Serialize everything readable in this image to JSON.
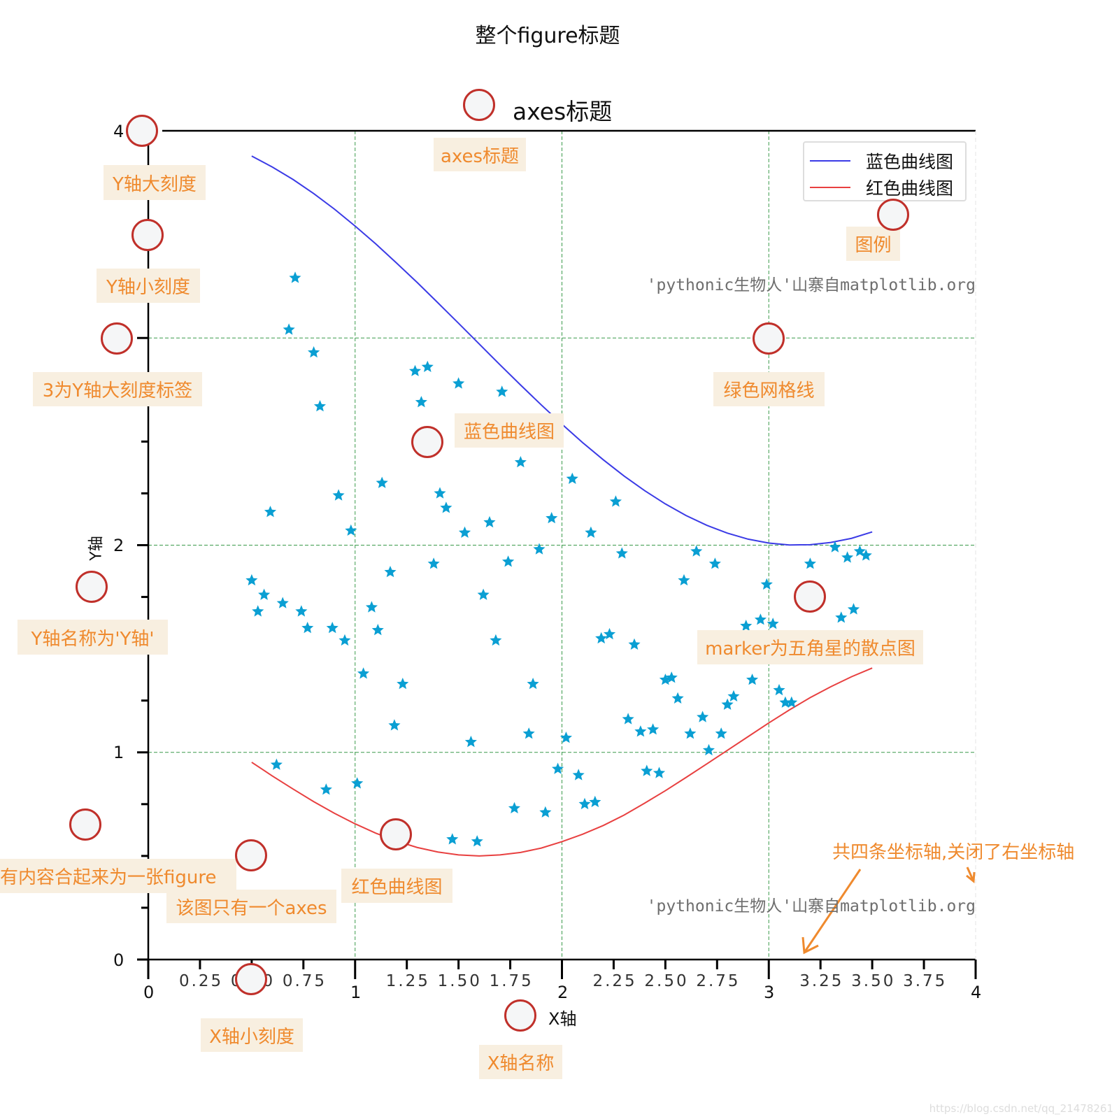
{
  "figure_title": "整个figure标题",
  "legend": [
    {
      "label": "蓝色曲线图",
      "color": "#3b3be6"
    },
    {
      "label": "红色曲线图",
      "color": "#e84040"
    }
  ],
  "watermark": "'pythonic生物人'山寨自matplotlib.org",
  "csdn_watermark": "https://blog.csdn.net/qq_21478261",
  "annotations": {
    "axes_title": "axes标题",
    "y_major_tick": "Y轴大刻度",
    "y_minor_tick": "Y轴小刻度",
    "y_major_label": "3为Y轴大刻度标签",
    "grid": "绿色网格线",
    "blue_curve": "蓝色曲线图",
    "legend": "图例",
    "y_label": "Y轴名称为'Y轴'",
    "scatter": "marker为五角星的散点图",
    "figure": "有内容合起来为一张figure",
    "axes": "该图只有一个axes",
    "red_curve": "红色曲线图",
    "x_minor_tick": "X轴小刻度",
    "x_label": "X轴名称",
    "spines": "共四条坐标轴,关闭了右坐标轴"
  },
  "chart_data": {
    "type": "line+scatter",
    "title": "axes标题",
    "xlabel": "X轴",
    "ylabel": "Y轴",
    "xlim": [
      0,
      4
    ],
    "ylim": [
      0,
      4
    ],
    "x_major_ticks": [
      "0",
      "1",
      "2",
      "3",
      "4"
    ],
    "x_minor_ticks": [
      "0.25",
      "0.50",
      "0.75",
      "1.25",
      "1.50",
      "1.75",
      "2.25",
      "2.50",
      "2.75",
      "3.25",
      "3.50",
      "3.75"
    ],
    "x_minor_values": [
      0.25,
      0.5,
      0.75,
      1.25,
      1.5,
      1.75,
      2.25,
      2.5,
      2.75,
      3.25,
      3.5,
      3.75
    ],
    "y_major_ticks": [
      "0",
      "1",
      "2",
      "3",
      "4"
    ],
    "grid": true,
    "legend_position": "upper-right",
    "x": [
      0.5,
      0.6,
      0.7,
      0.8,
      0.9,
      1.0,
      1.1,
      1.2,
      1.3,
      1.4,
      1.5,
      1.6,
      1.7,
      1.8,
      1.9,
      2.0,
      2.1,
      2.2,
      2.3,
      2.4,
      2.5,
      2.6,
      2.7,
      2.8,
      2.9,
      3.0,
      3.1,
      3.2,
      3.3,
      3.4,
      3.5
    ],
    "series": [
      {
        "name": "蓝色曲线图",
        "color": "#3b3be6",
        "values": [
          3.878,
          3.825,
          3.765,
          3.697,
          3.622,
          3.54,
          3.454,
          3.362,
          3.268,
          3.17,
          3.071,
          2.971,
          2.871,
          2.773,
          2.677,
          2.584,
          2.495,
          2.412,
          2.334,
          2.263,
          2.199,
          2.143,
          2.096,
          2.058,
          2.029,
          2.01,
          2.001,
          2.002,
          2.013,
          2.033,
          2.064
        ]
      },
      {
        "name": "红色曲线图",
        "color": "#e84040",
        "values": [
          0.952,
          0.886,
          0.823,
          0.762,
          0.706,
          0.655,
          0.61,
          0.572,
          0.541,
          0.519,
          0.505,
          0.5,
          0.505,
          0.517,
          0.538,
          0.569,
          0.605,
          0.647,
          0.697,
          0.755,
          0.815,
          0.879,
          0.944,
          1.01,
          1.076,
          1.142,
          1.205,
          1.264,
          1.317,
          1.365,
          1.407
        ]
      }
    ],
    "scatter": {
      "marker": "star",
      "color": "#0a9fd3",
      "x": [
        0.71,
        0.68,
        0.8,
        0.83,
        0.59,
        0.92,
        0.98,
        0.5,
        0.56,
        0.53,
        0.65,
        0.74,
        0.77,
        0.89,
        0.95,
        0.62,
        0.86,
        1.01,
        1.04,
        1.08,
        1.11,
        1.17,
        1.13,
        1.23,
        1.19,
        1.29,
        1.35,
        1.32,
        1.41,
        1.44,
        1.38,
        1.5,
        1.53,
        1.56,
        1.47,
        1.59,
        1.62,
        1.65,
        1.68,
        1.71,
        1.74,
        1.77,
        1.8,
        1.84,
        1.86,
        1.89,
        1.92,
        1.95,
        1.98,
        2.02,
        2.05,
        2.08,
        2.11,
        2.16,
        2.14,
        2.19,
        2.23,
        2.26,
        2.29,
        2.32,
        2.35,
        2.38,
        2.41,
        2.44,
        2.47,
        2.5,
        2.53,
        2.56,
        2.59,
        2.62,
        2.65,
        2.68,
        2.71,
        2.74,
        2.77,
        2.8,
        2.83,
        2.89,
        2.92,
        2.96,
        2.99,
        3.02,
        3.05,
        3.08,
        3.11,
        3.2,
        3.23,
        3.32,
        3.35,
        3.38,
        3.41,
        3.44,
        3.47
      ],
      "y": [
        3.29,
        3.04,
        2.93,
        2.67,
        2.16,
        2.24,
        2.07,
        1.83,
        1.76,
        1.68,
        1.72,
        1.68,
        1.6,
        1.6,
        1.54,
        0.94,
        0.82,
        0.85,
        1.38,
        1.7,
        1.59,
        1.87,
        2.3,
        1.33,
        1.13,
        2.84,
        2.86,
        2.69,
        2.25,
        2.18,
        1.91,
        2.78,
        2.06,
        1.05,
        0.58,
        0.57,
        1.76,
        2.11,
        1.54,
        2.74,
        1.92,
        0.73,
        2.4,
        1.09,
        1.33,
        1.98,
        0.71,
        2.13,
        0.92,
        1.07,
        2.32,
        0.89,
        0.75,
        0.76,
        2.06,
        1.55,
        1.57,
        2.21,
        1.96,
        1.16,
        1.52,
        1.1,
        0.91,
        1.11,
        0.9,
        1.35,
        1.36,
        1.26,
        1.83,
        1.09,
        1.97,
        1.17,
        1.01,
        1.91,
        1.09,
        1.23,
        1.27,
        1.61,
        1.35,
        1.64,
        1.81,
        1.62,
        1.3,
        1.24,
        1.24,
        1.91,
        1.75,
        1.99,
        1.65,
        1.94,
        1.69,
        1.97,
        1.95
      ]
    }
  }
}
